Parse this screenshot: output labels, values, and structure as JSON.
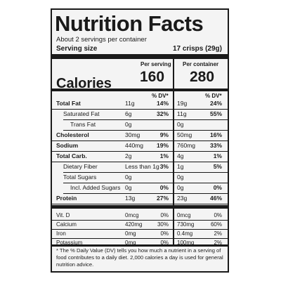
{
  "title": "Nutrition Facts",
  "servings_per_container": "About 2 servings per container",
  "serving_size_label": "Serving size",
  "serving_size_value": "17 crisps (29g)",
  "col_headers": {
    "per_serving": "Per serving",
    "per_container": "Per container"
  },
  "calories_label": "Calories",
  "calories": {
    "per_serving": "160",
    "per_container": "280"
  },
  "dv_header": "% DV*",
  "nutrients": [
    {
      "label": "Total Fat",
      "bold": true,
      "indent": 0,
      "s_amt": "11g",
      "s_dv": "14%",
      "c_amt": "19g",
      "c_dv": "24%"
    },
    {
      "label": "Saturated Fat",
      "bold": false,
      "indent": 1,
      "s_amt": "6g",
      "s_dv": "32%",
      "c_amt": "11g",
      "c_dv": "55%"
    },
    {
      "label": "Trans Fat",
      "bold": false,
      "indent": 2,
      "s_amt": "0g",
      "s_dv": "",
      "c_amt": "0g",
      "c_dv": ""
    },
    {
      "label": "Cholesterol",
      "bold": true,
      "indent": 0,
      "s_amt": "30mg",
      "s_dv": "9%",
      "c_amt": "50mg",
      "c_dv": "16%"
    },
    {
      "label": "Sodium",
      "bold": true,
      "indent": 0,
      "s_amt": "440mg",
      "s_dv": "19%",
      "c_amt": "760mg",
      "c_dv": "33%"
    },
    {
      "label": "Total Carb.",
      "bold": true,
      "indent": 0,
      "s_amt": "2g",
      "s_dv": "1%",
      "c_amt": "4g",
      "c_dv": "1%"
    },
    {
      "label": "Dietary Fiber",
      "bold": false,
      "indent": 1,
      "s_amt": "Less than 1g",
      "s_dv": "3%",
      "c_amt": "1g",
      "c_dv": "5%"
    },
    {
      "label": "Total Sugars",
      "bold": false,
      "indent": 1,
      "s_amt": "0g",
      "s_dv": "",
      "c_amt": "0g",
      "c_dv": ""
    },
    {
      "label": "Incl. Added Sugars",
      "bold": false,
      "indent": 2,
      "s_amt": "0g",
      "s_dv": "0%",
      "c_amt": "0g",
      "c_dv": "0%"
    },
    {
      "label": "Protein",
      "bold": true,
      "indent": 0,
      "s_amt": "13g",
      "s_dv": "27%",
      "c_amt": "23g",
      "c_dv": "46%"
    }
  ],
  "vitamins": [
    {
      "label": "Vit. D",
      "s_amt": "0mcg",
      "s_dv": "0%",
      "c_amt": "0mcg",
      "c_dv": "0%"
    },
    {
      "label": "Calcium",
      "s_amt": "420mg",
      "s_dv": "30%",
      "c_amt": "730mg",
      "c_dv": "60%"
    },
    {
      "label": "Iron",
      "s_amt": "0mg",
      "s_dv": "0%",
      "c_amt": "0.4mg",
      "c_dv": "2%"
    },
    {
      "label": "Potassium",
      "s_amt": "0mg",
      "s_dv": "0%",
      "c_amt": "100mg",
      "c_dv": "2%"
    }
  ],
  "footnote": "* The % Daily Value (DV) tells you how much a nutrient in a serving of food contributes to a daily diet. 2,000 calories a day is used for general nutrition advice."
}
